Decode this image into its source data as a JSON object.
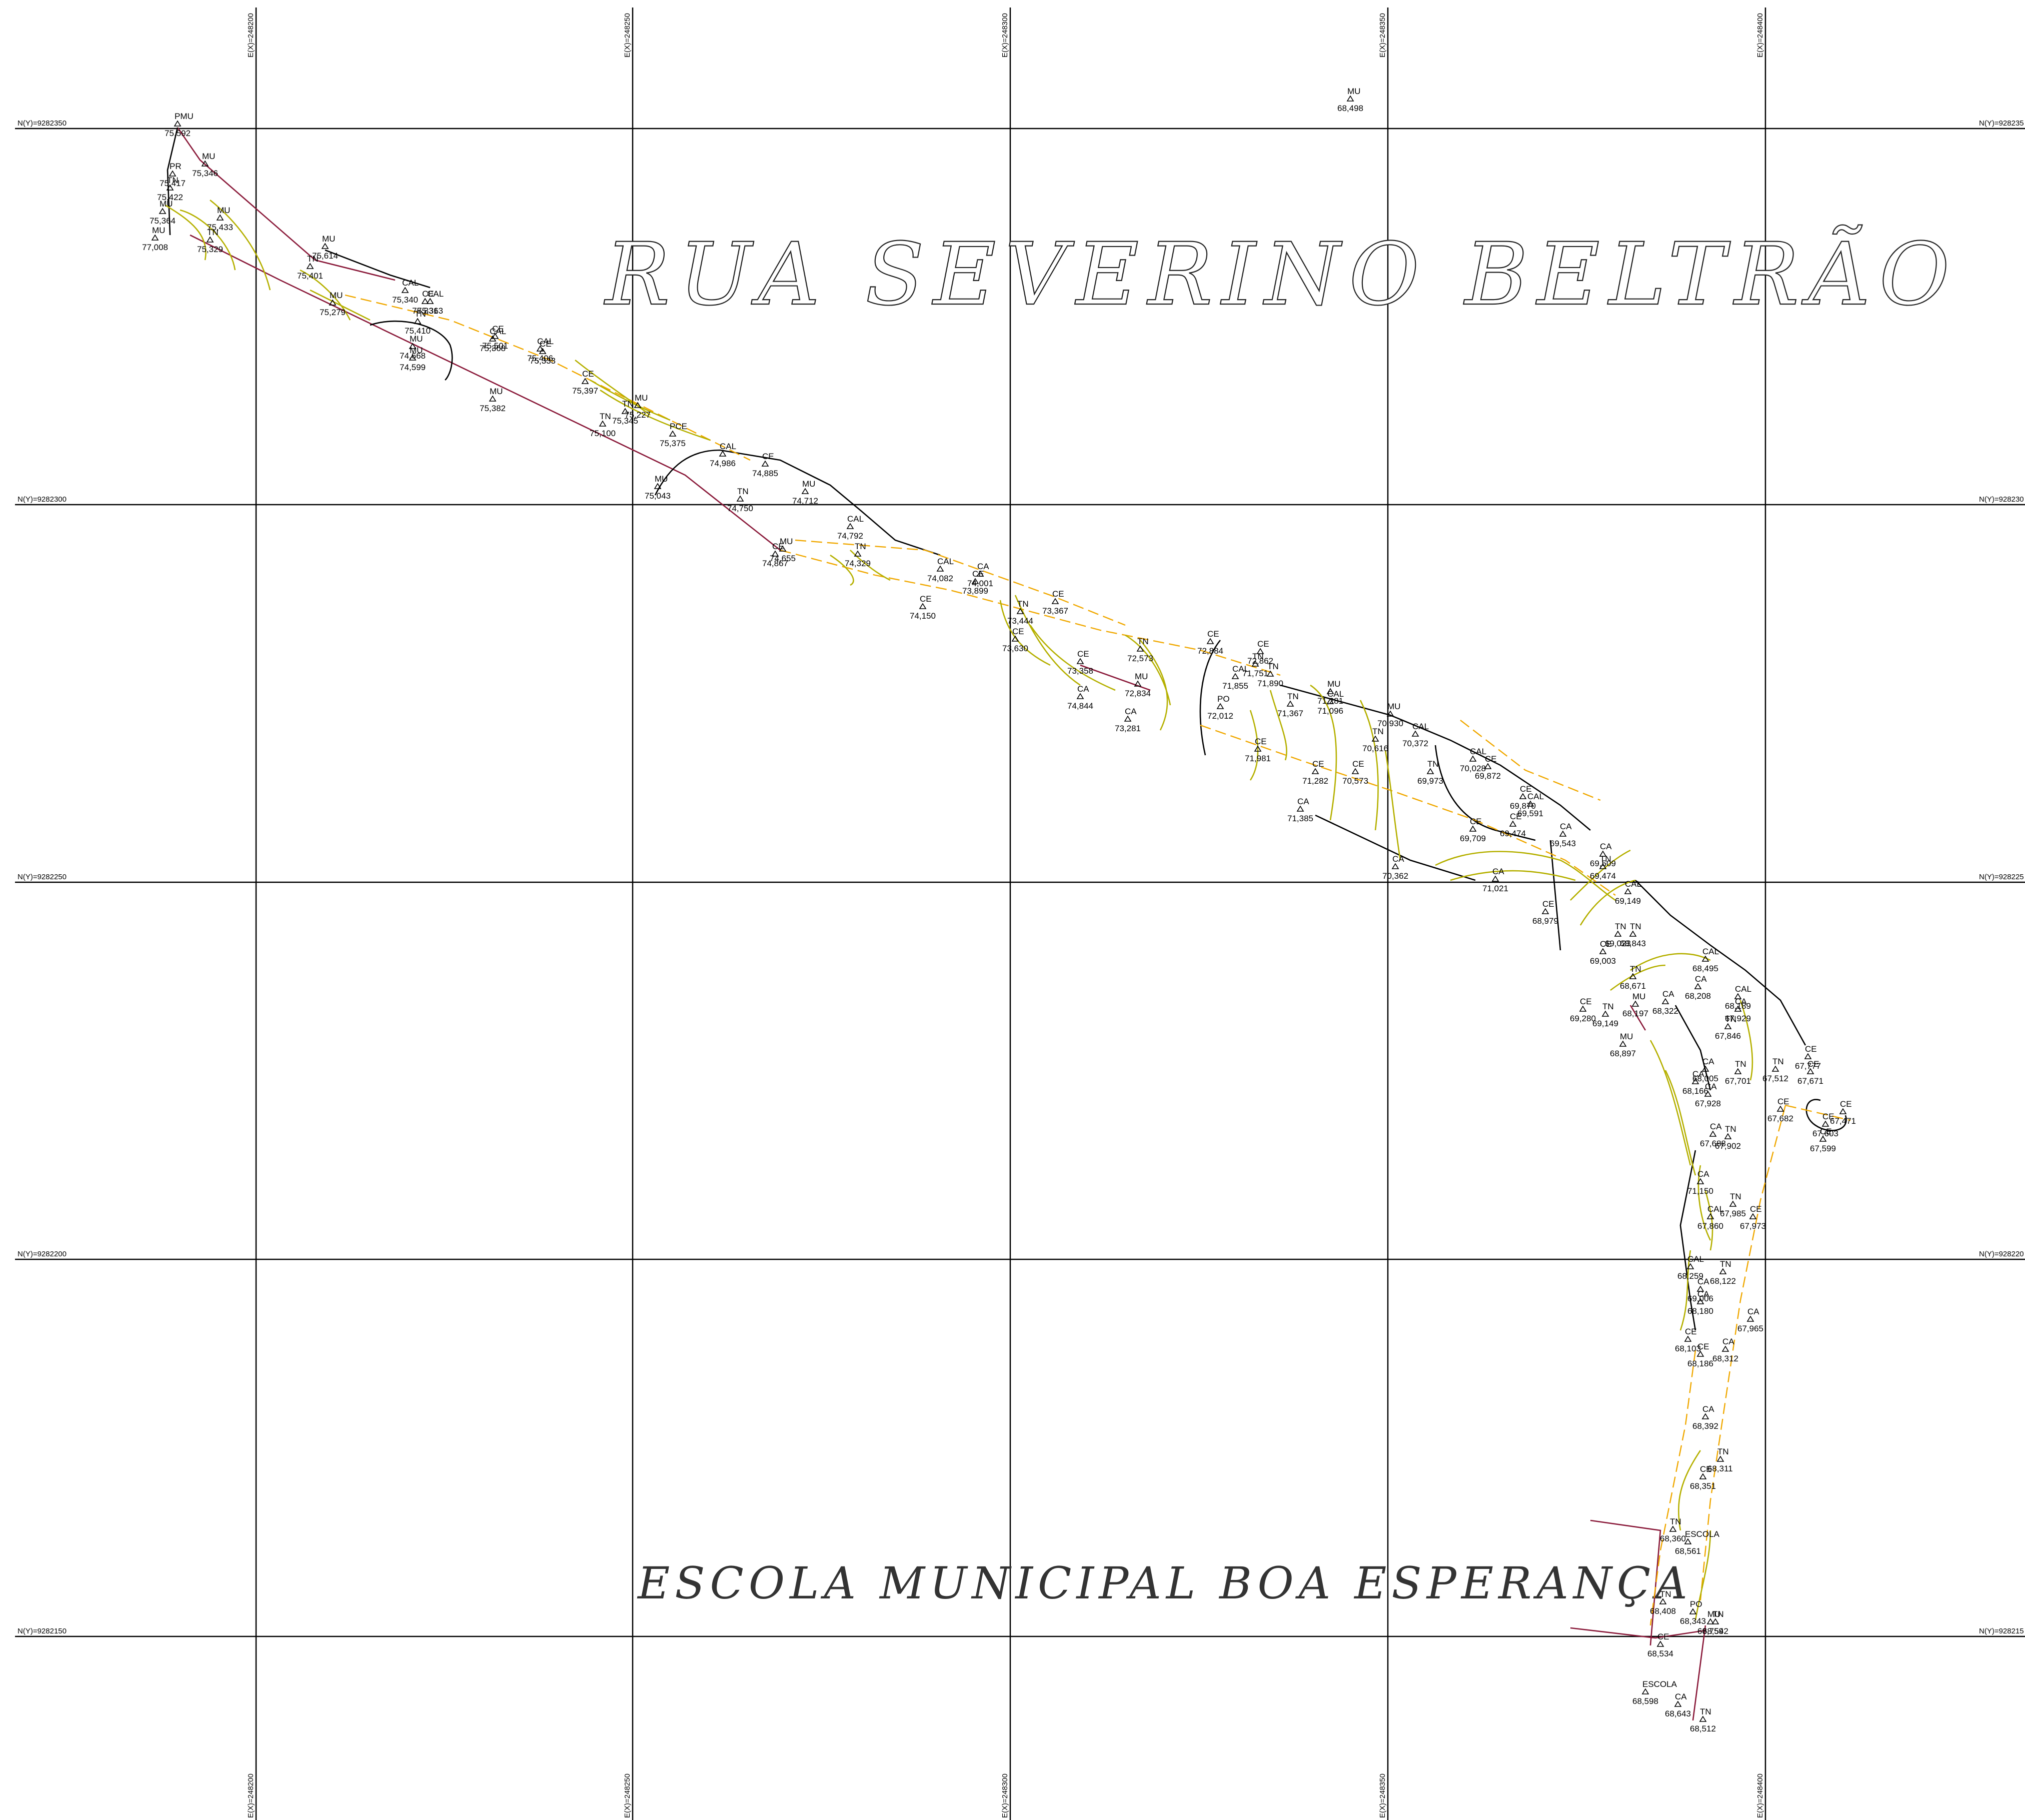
{
  "titles": {
    "street": "RUA SEVERINO BELTRÃO",
    "school": "ESCOLA MUNICIPAL BOA ESPERANÇA"
  },
  "grid": {
    "easting_labels": [
      "E(X)=248200",
      "E(X)=248250",
      "E(X)=248300",
      "E(X)=248350",
      "E(X)=248400"
    ],
    "northing_labels": [
      "N(Y)=9282350",
      "N(Y)=9282300",
      "N(Y)=9282250",
      "N(Y)=9282200",
      "N(Y)=9282150"
    ],
    "northing_labels_right": [
      "N(Y)=928235",
      "N(Y)=928230",
      "N(Y)=928225",
      "N(Y)=928220",
      "N(Y)=928215"
    ]
  },
  "colors": {
    "contour": "#b5b000",
    "curb_dashed": "#f0a800",
    "property_line": "#8a1a3a",
    "grid": "#000000"
  },
  "points": [
    {
      "code": "PMU",
      "elev": "75,592"
    },
    {
      "code": "MU",
      "elev": "75,346"
    },
    {
      "code": "PR",
      "elev": "75,417"
    },
    {
      "code": "TN",
      "elev": "75,422"
    },
    {
      "code": "MU",
      "elev": "75,364"
    },
    {
      "code": "MU",
      "elev": "77,008"
    },
    {
      "code": "MU",
      "elev": "75,433"
    },
    {
      "code": "TN",
      "elev": "75,329"
    },
    {
      "code": "MU",
      "elev": "75,614"
    },
    {
      "code": "TN",
      "elev": "75,401"
    },
    {
      "code": "MU",
      "elev": "75,279"
    },
    {
      "code": "CAL",
      "elev": "75,340"
    },
    {
      "code": "CE",
      "elev": "75,331"
    },
    {
      "code": "CAL",
      "elev": "75,363"
    },
    {
      "code": "TN",
      "elev": "75,410"
    },
    {
      "code": "MU",
      "elev": "74,668"
    },
    {
      "code": "MU",
      "elev": "74,599"
    },
    {
      "code": "CE",
      "elev": "75,501"
    },
    {
      "code": "CAL",
      "elev": "75,368"
    },
    {
      "code": "CE",
      "elev": "75,333"
    },
    {
      "code": "CAL",
      "elev": "75,406"
    },
    {
      "code": "MU",
      "elev": "75,382"
    },
    {
      "code": "CE",
      "elev": "75,397"
    },
    {
      "code": "MU",
      "elev": "75,227"
    },
    {
      "code": "TN",
      "elev": "75,345"
    },
    {
      "code": "TN",
      "elev": "75,100"
    },
    {
      "code": "PCE",
      "elev": "75,375"
    },
    {
      "code": "CAL",
      "elev": "74,986"
    },
    {
      "code": "MU",
      "elev": "75,043"
    },
    {
      "code": "CE",
      "elev": "74,885"
    },
    {
      "code": "TN",
      "elev": "74,750"
    },
    {
      "code": "MU",
      "elev": "74,712"
    },
    {
      "code": "CAL",
      "elev": "74,792"
    },
    {
      "code": "TN",
      "elev": "74,329"
    },
    {
      "code": "MU",
      "elev": "74,655"
    },
    {
      "code": "CE",
      "elev": "74,867"
    },
    {
      "code": "CAL",
      "elev": "74,082"
    },
    {
      "code": "CA",
      "elev": "74,001"
    },
    {
      "code": "CE",
      "elev": "73,899"
    },
    {
      "code": "CE",
      "elev": "74,150"
    },
    {
      "code": "TN",
      "elev": "73,444"
    },
    {
      "code": "CE",
      "elev": "73,367"
    },
    {
      "code": "CE",
      "elev": "73,630"
    },
    {
      "code": "CE",
      "elev": "73,358"
    },
    {
      "code": "CA",
      "elev": "74,844"
    },
    {
      "code": "CA",
      "elev": "73,281"
    },
    {
      "code": "TN",
      "elev": "72,573"
    },
    {
      "code": "MU",
      "elev": "72,834"
    },
    {
      "code": "CE",
      "elev": "72,884"
    },
    {
      "code": "CE",
      "elev": "72,862"
    },
    {
      "code": "TN",
      "elev": "71,751"
    },
    {
      "code": "CAL",
      "elev": "71,855"
    },
    {
      "code": "TN",
      "elev": "71,890"
    },
    {
      "code": "PO",
      "elev": "72,012"
    },
    {
      "code": "TN",
      "elev": "71,367"
    },
    {
      "code": "CE",
      "elev": "71,981"
    },
    {
      "code": "MU",
      "elev": "71,281"
    },
    {
      "code": "CAL",
      "elev": "71,096"
    },
    {
      "code": "MU",
      "elev": "70,930"
    },
    {
      "code": "TN",
      "elev": "70,616"
    },
    {
      "code": "CAL",
      "elev": "70,372"
    },
    {
      "code": "CE",
      "elev": "71,282"
    },
    {
      "code": "CE",
      "elev": "70,573"
    },
    {
      "code": "CA",
      "elev": "71,385"
    },
    {
      "code": "CA",
      "elev": "70,362"
    },
    {
      "code": "TN",
      "elev": "69,973"
    },
    {
      "code": "CAL",
      "elev": "70,028"
    },
    {
      "code": "CE",
      "elev": "69,872"
    },
    {
      "code": "CE",
      "elev": "69,870"
    },
    {
      "code": "CAL",
      "elev": "69,591"
    },
    {
      "code": "CE",
      "elev": "69,709"
    },
    {
      "code": "CE",
      "elev": "69,474"
    },
    {
      "code": "CA",
      "elev": "69,543"
    },
    {
      "code": "CA",
      "elev": "69,509"
    },
    {
      "code": "TN",
      "elev": "69,474"
    },
    {
      "code": "CA",
      "elev": "71,021"
    },
    {
      "code": "CE",
      "elev": "68,979"
    },
    {
      "code": "CAL",
      "elev": "69,149"
    },
    {
      "code": "TN",
      "elev": "69,023"
    },
    {
      "code": "TN",
      "elev": "68,843"
    },
    {
      "code": "CE",
      "elev": "69,003"
    },
    {
      "code": "TN",
      "elev": "68,671"
    },
    {
      "code": "CAL",
      "elev": "68,495"
    },
    {
      "code": "CA",
      "elev": "68,208"
    },
    {
      "code": "MU",
      "elev": "68,197"
    },
    {
      "code": "CA",
      "elev": "68,322"
    },
    {
      "code": "CE",
      "elev": "69,280"
    },
    {
      "code": "TN",
      "elev": "69,149"
    },
    {
      "code": "MU",
      "elev": "68,897"
    },
    {
      "code": "CAL",
      "elev": "68,189"
    },
    {
      "code": "CA",
      "elev": "67,929"
    },
    {
      "code": "TN",
      "elev": "67,846"
    },
    {
      "code": "CE",
      "elev": "67,777"
    },
    {
      "code": "CE",
      "elev": "67,671"
    },
    {
      "code": "TN",
      "elev": "67,512"
    },
    {
      "code": "TN",
      "elev": "67,701"
    },
    {
      "code": "CA",
      "elev": "68,005"
    },
    {
      "code": "CA",
      "elev": "68,166"
    },
    {
      "code": "CA",
      "elev": "67,928"
    },
    {
      "code": "CE",
      "elev": "67,682"
    },
    {
      "code": "CE",
      "elev": "67,471"
    },
    {
      "code": "CE",
      "elev": "67,603"
    },
    {
      "code": "CE",
      "elev": "67,599"
    },
    {
      "code": "CA",
      "elev": "67,688"
    },
    {
      "code": "TN",
      "elev": "67,902"
    },
    {
      "code": "CA",
      "elev": "71,150"
    },
    {
      "code": "TN",
      "elev": "67,985"
    },
    {
      "code": "CAL",
      "elev": "67,860"
    },
    {
      "code": "CE",
      "elev": "67,973"
    },
    {
      "code": "CAL",
      "elev": "68,259"
    },
    {
      "code": "TN",
      "elev": "68,122"
    },
    {
      "code": "CA",
      "elev": "69,006"
    },
    {
      "code": "CA",
      "elev": "68,180"
    },
    {
      "code": "CA",
      "elev": "67,965"
    },
    {
      "code": "CE",
      "elev": "68,103"
    },
    {
      "code": "CA",
      "elev": "68,312"
    },
    {
      "code": "CE",
      "elev": "68,186"
    },
    {
      "code": "CA",
      "elev": "68,392"
    },
    {
      "code": "TN",
      "elev": "68,311"
    },
    {
      "code": "CE",
      "elev": "68,351"
    },
    {
      "code": "TN",
      "elev": "68,360"
    },
    {
      "code": "ESCOLA",
      "elev": "68,561"
    },
    {
      "code": "TN",
      "elev": "68,408"
    },
    {
      "code": "PO",
      "elev": "68,343"
    },
    {
      "code": "TN",
      "elev": "68,542"
    },
    {
      "code": "MU",
      "elev": "68,759"
    },
    {
      "code": "CE",
      "elev": "68,534"
    },
    {
      "code": "ESCOLA",
      "elev": "68,598"
    },
    {
      "code": "CA",
      "elev": "68,643"
    },
    {
      "code": "TN",
      "elev": "68,512"
    },
    {
      "code": "MU",
      "elev": "68,498"
    }
  ]
}
